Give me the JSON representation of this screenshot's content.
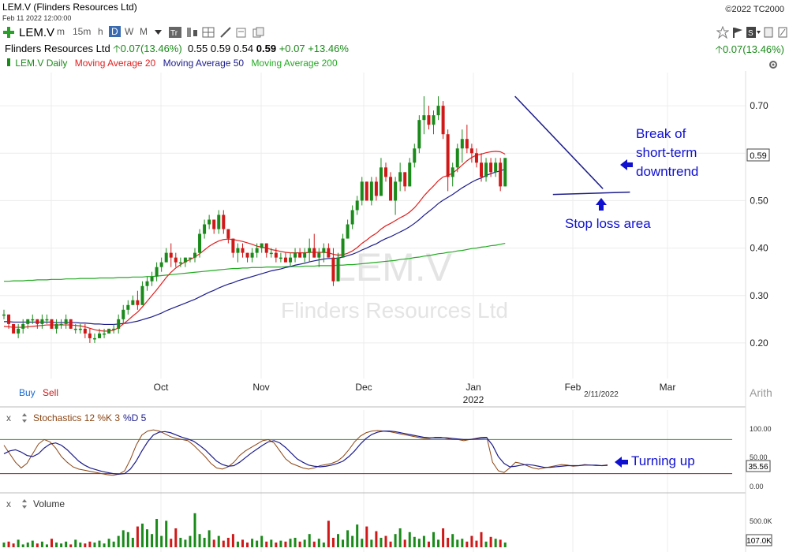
{
  "header": {
    "title": "LEM.V (Flinders Resources Ltd)",
    "datetime": "Feb 11 2022 12:00:00",
    "copyright": "©2022 TC2000"
  },
  "toolbar": {
    "symbol": "LEM.V",
    "timeframes": [
      "m",
      "15m",
      "h",
      "D",
      "W",
      "M"
    ],
    "selected_timeframe": "D"
  },
  "quote": {
    "name": "Flinders Resources Ltd",
    "change": "0.07(13.46%)",
    "open": "0.55",
    "high": "0.59",
    "low": "0.54",
    "last": "0.59",
    "change_abs": "+0.07",
    "change_pct": "+13.46%",
    "right_change": "0.07(13.46%)"
  },
  "legend": {
    "symbol": "LEM.V Daily",
    "ma20": "Moving Average 20",
    "ma50": "Moving Average 50",
    "ma200": "Moving Average 200"
  },
  "colors": {
    "up": "#1a8a1a",
    "down": "#d01818",
    "ma20": "#e02020",
    "ma50": "#1c1c8c",
    "ma200": "#22aa22",
    "annotation": "#1010d0",
    "stoch_k": "#8b4513",
    "stoch_d": "#1c1c8c"
  },
  "chart_data": {
    "type": "candlestick",
    "watermark_symbol": "LEM.V",
    "watermark_name": "Flinders Resources Ltd",
    "y_ticks": [
      "0.70",
      "0.60",
      "0.50",
      "0.40",
      "0.30",
      "0.20"
    ],
    "ylim": [
      0.15,
      0.77
    ],
    "x_labels": [
      "Oct",
      "Nov",
      "Dec",
      "Jan",
      "Feb",
      "Mar"
    ],
    "year_label": "2022",
    "date_marker": "2/11/2022",
    "last_price_label": "0.59",
    "scale_label": "Arith",
    "buy_label": "Buy",
    "sell_label": "Sell",
    "candles": [
      [
        0.26,
        0.27,
        0.25,
        0.26
      ],
      [
        0.26,
        0.26,
        0.23,
        0.24
      ],
      [
        0.24,
        0.24,
        0.22,
        0.22
      ],
      [
        0.22,
        0.24,
        0.21,
        0.23
      ],
      [
        0.23,
        0.25,
        0.22,
        0.24
      ],
      [
        0.24,
        0.25,
        0.23,
        0.25
      ],
      [
        0.25,
        0.26,
        0.24,
        0.25
      ],
      [
        0.25,
        0.25,
        0.23,
        0.24
      ],
      [
        0.24,
        0.26,
        0.23,
        0.25
      ],
      [
        0.25,
        0.26,
        0.24,
        0.25
      ],
      [
        0.25,
        0.25,
        0.23,
        0.23
      ],
      [
        0.23,
        0.25,
        0.22,
        0.24
      ],
      [
        0.24,
        0.25,
        0.23,
        0.24
      ],
      [
        0.24,
        0.26,
        0.23,
        0.25
      ],
      [
        0.25,
        0.25,
        0.23,
        0.23
      ],
      [
        0.23,
        0.24,
        0.22,
        0.23
      ],
      [
        0.23,
        0.24,
        0.22,
        0.23
      ],
      [
        0.23,
        0.24,
        0.21,
        0.22
      ],
      [
        0.22,
        0.23,
        0.2,
        0.21
      ],
      [
        0.21,
        0.22,
        0.2,
        0.21
      ],
      [
        0.21,
        0.23,
        0.21,
        0.22
      ],
      [
        0.22,
        0.23,
        0.21,
        0.22
      ],
      [
        0.22,
        0.23,
        0.22,
        0.23
      ],
      [
        0.23,
        0.24,
        0.22,
        0.23
      ],
      [
        0.23,
        0.26,
        0.22,
        0.25
      ],
      [
        0.25,
        0.28,
        0.24,
        0.27
      ],
      [
        0.27,
        0.29,
        0.26,
        0.28
      ],
      [
        0.28,
        0.3,
        0.28,
        0.29
      ],
      [
        0.29,
        0.31,
        0.27,
        0.28
      ],
      [
        0.28,
        0.33,
        0.28,
        0.32
      ],
      [
        0.32,
        0.34,
        0.31,
        0.33
      ],
      [
        0.33,
        0.35,
        0.32,
        0.34
      ],
      [
        0.34,
        0.37,
        0.33,
        0.36
      ],
      [
        0.36,
        0.38,
        0.35,
        0.37
      ],
      [
        0.37,
        0.4,
        0.37,
        0.39
      ],
      [
        0.39,
        0.41,
        0.36,
        0.38
      ],
      [
        0.38,
        0.39,
        0.36,
        0.37
      ],
      [
        0.37,
        0.38,
        0.36,
        0.37
      ],
      [
        0.37,
        0.38,
        0.36,
        0.38
      ],
      [
        0.38,
        0.38,
        0.37,
        0.38
      ],
      [
        0.38,
        0.4,
        0.37,
        0.39
      ],
      [
        0.39,
        0.44,
        0.38,
        0.43
      ],
      [
        0.43,
        0.46,
        0.42,
        0.45
      ],
      [
        0.45,
        0.47,
        0.44,
        0.46
      ],
      [
        0.46,
        0.46,
        0.43,
        0.44
      ],
      [
        0.44,
        0.48,
        0.43,
        0.47
      ],
      [
        0.47,
        0.48,
        0.43,
        0.44
      ],
      [
        0.44,
        0.44,
        0.41,
        0.42
      ],
      [
        0.42,
        0.42,
        0.38,
        0.39
      ],
      [
        0.39,
        0.41,
        0.37,
        0.4
      ],
      [
        0.4,
        0.41,
        0.38,
        0.39
      ],
      [
        0.39,
        0.39,
        0.37,
        0.38
      ],
      [
        0.38,
        0.4,
        0.37,
        0.39
      ],
      [
        0.39,
        0.41,
        0.38,
        0.4
      ],
      [
        0.4,
        0.41,
        0.39,
        0.41
      ],
      [
        0.41,
        0.41,
        0.38,
        0.39
      ],
      [
        0.39,
        0.4,
        0.38,
        0.39
      ],
      [
        0.39,
        0.4,
        0.37,
        0.38
      ],
      [
        0.38,
        0.39,
        0.37,
        0.38
      ],
      [
        0.38,
        0.39,
        0.37,
        0.37
      ],
      [
        0.37,
        0.39,
        0.36,
        0.38
      ],
      [
        0.38,
        0.4,
        0.37,
        0.39
      ],
      [
        0.39,
        0.4,
        0.38,
        0.38
      ],
      [
        0.38,
        0.4,
        0.37,
        0.39
      ],
      [
        0.39,
        0.42,
        0.37,
        0.4
      ],
      [
        0.4,
        0.43,
        0.38,
        0.38
      ],
      [
        0.38,
        0.4,
        0.36,
        0.39
      ],
      [
        0.39,
        0.41,
        0.37,
        0.4
      ],
      [
        0.4,
        0.41,
        0.38,
        0.38
      ],
      [
        0.38,
        0.4,
        0.32,
        0.33
      ],
      [
        0.33,
        0.39,
        0.33,
        0.38
      ],
      [
        0.38,
        0.43,
        0.38,
        0.42
      ],
      [
        0.42,
        0.46,
        0.42,
        0.45
      ],
      [
        0.45,
        0.49,
        0.44,
        0.48
      ],
      [
        0.48,
        0.51,
        0.47,
        0.5
      ],
      [
        0.5,
        0.55,
        0.49,
        0.54
      ],
      [
        0.54,
        0.54,
        0.5,
        0.5
      ],
      [
        0.5,
        0.55,
        0.49,
        0.54
      ],
      [
        0.54,
        0.55,
        0.5,
        0.51
      ],
      [
        0.51,
        0.59,
        0.51,
        0.57
      ],
      [
        0.57,
        0.58,
        0.54,
        0.55
      ],
      [
        0.55,
        0.56,
        0.5,
        0.5
      ],
      [
        0.5,
        0.55,
        0.47,
        0.54
      ],
      [
        0.54,
        0.58,
        0.52,
        0.56
      ],
      [
        0.56,
        0.56,
        0.52,
        0.53
      ],
      [
        0.53,
        0.59,
        0.53,
        0.58
      ],
      [
        0.58,
        0.62,
        0.57,
        0.61
      ],
      [
        0.61,
        0.68,
        0.6,
        0.67
      ],
      [
        0.67,
        0.72,
        0.64,
        0.68
      ],
      [
        0.68,
        0.7,
        0.65,
        0.66
      ],
      [
        0.66,
        0.69,
        0.64,
        0.68
      ],
      [
        0.68,
        0.72,
        0.67,
        0.7
      ],
      [
        0.7,
        0.71,
        0.63,
        0.64
      ],
      [
        0.64,
        0.65,
        0.52,
        0.55
      ],
      [
        0.55,
        0.58,
        0.53,
        0.57
      ],
      [
        0.57,
        0.62,
        0.56,
        0.61
      ],
      [
        0.61,
        0.65,
        0.58,
        0.63
      ],
      [
        0.63,
        0.66,
        0.6,
        0.61
      ],
      [
        0.61,
        0.62,
        0.58,
        0.6
      ],
      [
        0.6,
        0.61,
        0.57,
        0.58
      ],
      [
        0.58,
        0.6,
        0.54,
        0.55
      ],
      [
        0.55,
        0.59,
        0.54,
        0.58
      ],
      [
        0.58,
        0.59,
        0.55,
        0.56
      ],
      [
        0.56,
        0.59,
        0.55,
        0.58
      ],
      [
        0.58,
        0.59,
        0.52,
        0.53
      ],
      [
        0.53,
        0.59,
        0.53,
        0.59
      ]
    ],
    "ma20": [
      0.235,
      0.234,
      0.233,
      0.233,
      0.233,
      0.234,
      0.235,
      0.236,
      0.237,
      0.238,
      0.238,
      0.238,
      0.238,
      0.238,
      0.238,
      0.237,
      0.236,
      0.234,
      0.231,
      0.228,
      0.226,
      0.225,
      0.225,
      0.227,
      0.232,
      0.24,
      0.248,
      0.257,
      0.265,
      0.276,
      0.288,
      0.3,
      0.312,
      0.325,
      0.338,
      0.349,
      0.358,
      0.365,
      0.371,
      0.376,
      0.381,
      0.388,
      0.396,
      0.404,
      0.41,
      0.415,
      0.418,
      0.419,
      0.418,
      0.416,
      0.414,
      0.411,
      0.408,
      0.404,
      0.402,
      0.4,
      0.397,
      0.395,
      0.393,
      0.391,
      0.39,
      0.39,
      0.39,
      0.39,
      0.391,
      0.391,
      0.391,
      0.391,
      0.39,
      0.387,
      0.385,
      0.386,
      0.389,
      0.394,
      0.401,
      0.41,
      0.417,
      0.425,
      0.431,
      0.44,
      0.447,
      0.452,
      0.458,
      0.464,
      0.469,
      0.476,
      0.485,
      0.497,
      0.51,
      0.521,
      0.531,
      0.542,
      0.55,
      0.553,
      0.558,
      0.566,
      0.575,
      0.584,
      0.591,
      0.596,
      0.598,
      0.601,
      0.603,
      0.604,
      0.603,
      0.598
    ],
    "ma50": [
      0.245,
      0.245,
      0.244,
      0.244,
      0.244,
      0.244,
      0.244,
      0.244,
      0.244,
      0.244,
      0.244,
      0.243,
      0.243,
      0.243,
      0.243,
      0.243,
      0.242,
      0.242,
      0.241,
      0.24,
      0.24,
      0.239,
      0.239,
      0.239,
      0.24,
      0.241,
      0.242,
      0.244,
      0.246,
      0.249,
      0.252,
      0.255,
      0.259,
      0.263,
      0.268,
      0.272,
      0.276,
      0.28,
      0.284,
      0.288,
      0.292,
      0.297,
      0.302,
      0.307,
      0.311,
      0.316,
      0.32,
      0.324,
      0.327,
      0.331,
      0.334,
      0.337,
      0.34,
      0.343,
      0.346,
      0.349,
      0.352,
      0.354,
      0.356,
      0.359,
      0.361,
      0.364,
      0.366,
      0.368,
      0.371,
      0.373,
      0.375,
      0.377,
      0.378,
      0.378,
      0.379,
      0.381,
      0.384,
      0.387,
      0.391,
      0.396,
      0.4,
      0.405,
      0.409,
      0.415,
      0.42,
      0.424,
      0.429,
      0.434,
      0.439,
      0.445,
      0.452,
      0.46,
      0.469,
      0.477,
      0.485,
      0.494,
      0.501,
      0.507,
      0.513,
      0.52,
      0.527,
      0.533,
      0.539,
      0.544,
      0.548,
      0.553,
      0.557,
      0.56,
      0.563,
      0.566
    ],
    "ma200": [
      0.33,
      0.33,
      0.331,
      0.331,
      0.331,
      0.332,
      0.332,
      0.333,
      0.333,
      0.333,
      0.334,
      0.334,
      0.334,
      0.335,
      0.335,
      0.335,
      0.336,
      0.336,
      0.336,
      0.336,
      0.337,
      0.337,
      0.337,
      0.337,
      0.338,
      0.338,
      0.338,
      0.339,
      0.339,
      0.339,
      0.34,
      0.34,
      0.341,
      0.342,
      0.343,
      0.344,
      0.345,
      0.346,
      0.347,
      0.348,
      0.349,
      0.35,
      0.351,
      0.352,
      0.353,
      0.354,
      0.355,
      0.356,
      0.357,
      0.357,
      0.358,
      0.358,
      0.359,
      0.359,
      0.359,
      0.36,
      0.36,
      0.36,
      0.36,
      0.361,
      0.361,
      0.361,
      0.361,
      0.362,
      0.362,
      0.362,
      0.363,
      0.363,
      0.363,
      0.363,
      0.364,
      0.364,
      0.365,
      0.365,
      0.366,
      0.367,
      0.368,
      0.369,
      0.37,
      0.371,
      0.372,
      0.373,
      0.374,
      0.376,
      0.377,
      0.378,
      0.38,
      0.381,
      0.383,
      0.384,
      0.386,
      0.388,
      0.389,
      0.391,
      0.392,
      0.394,
      0.395,
      0.397,
      0.399,
      0.4,
      0.402,
      0.403,
      0.405,
      0.406,
      0.408,
      0.41
    ],
    "trendline_down": [
      [
        93,
        0.72
      ],
      [
        104,
        0.525
      ]
    ],
    "support_line": [
      [
        96,
        0.513
      ],
      [
        108,
        0.518
      ]
    ],
    "stochastics": {
      "title": "Stochastics 12 %K 3",
      "d_label": "%D 5",
      "levels": [
        "100.00",
        "50.00",
        "0.00"
      ],
      "current": "35.56",
      "k": [
        70,
        55,
        40,
        30,
        38,
        55,
        72,
        80,
        76,
        65,
        50,
        40,
        32,
        28,
        26,
        24,
        22,
        20,
        18,
        17,
        19,
        25,
        45,
        70,
        88,
        95,
        97,
        95,
        90,
        85,
        82,
        80,
        78,
        70,
        60,
        50,
        38,
        30,
        28,
        32,
        40,
        52,
        60,
        66,
        72,
        78,
        80,
        74,
        60,
        46,
        38,
        34,
        30,
        28,
        30,
        34,
        36,
        38,
        42,
        50,
        62,
        76,
        86,
        92,
        95,
        96,
        95,
        94,
        92,
        90,
        88,
        86,
        84,
        82,
        82,
        84,
        84,
        82,
        80,
        80,
        78,
        80,
        82,
        84,
        84,
        40,
        25,
        22,
        30,
        40,
        38,
        34,
        30,
        28,
        30,
        32,
        34,
        36,
        35,
        33,
        34,
        36,
        35,
        34,
        34,
        35.56
      ],
      "d": [
        55,
        60,
        62,
        58,
        52,
        50,
        55,
        65,
        72,
        74,
        70,
        62,
        52,
        42,
        35,
        30,
        27,
        24,
        22,
        20,
        19,
        20,
        28,
        42,
        60,
        76,
        88,
        93,
        94,
        92,
        88,
        84,
        81,
        77,
        70,
        62,
        52,
        42,
        36,
        33,
        34,
        40,
        48,
        56,
        63,
        70,
        76,
        78,
        74,
        66,
        56,
        46,
        40,
        35,
        33,
        32,
        33,
        35,
        38,
        42,
        50,
        60,
        72,
        82,
        89,
        93,
        95,
        95,
        94,
        92,
        90,
        88,
        86,
        84,
        83,
        83,
        83,
        83,
        82,
        81,
        80,
        80,
        81,
        82,
        83,
        70,
        50,
        38,
        32,
        33,
        35,
        36,
        35,
        33,
        31,
        31,
        32,
        33,
        34,
        34,
        34,
        35,
        35,
        35,
        34,
        34.5
      ]
    },
    "volume": {
      "title": "Volume",
      "levels": [
        "500.0K"
      ],
      "current": "107.0K"
    }
  },
  "annotations": {
    "break_line1": "Break of",
    "break_line2": "short-term",
    "break_line3": "downtrend",
    "stop_loss": "Stop loss area",
    "turning_up": "Turning up"
  },
  "panes": {
    "close_symbol": "x"
  }
}
